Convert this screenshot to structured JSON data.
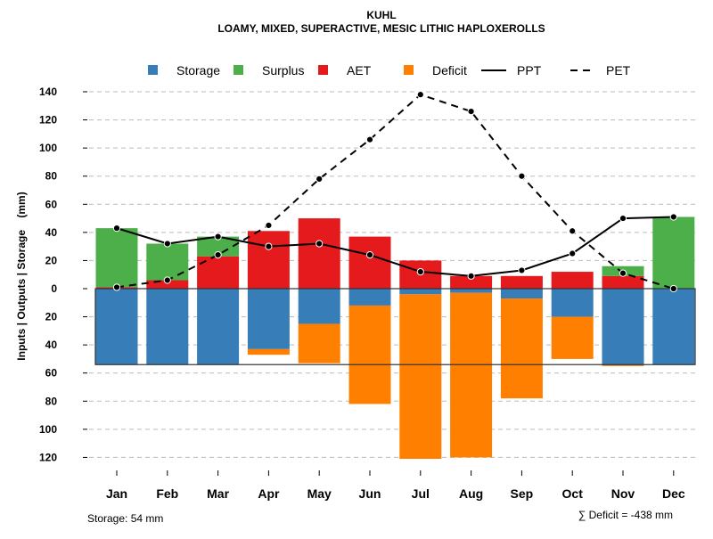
{
  "chart_data": {
    "type": "bar",
    "title": "KUHL",
    "subtitle": "LOAMY, MIXED, SUPERACTIVE, MESIC LITHIC HAPLOXEROLLS",
    "ylabel": "Inputs | Outputs | Storage    (mm)",
    "xlabel": "",
    "ylim": [
      -125,
      140
    ],
    "yticks": [
      140,
      120,
      100,
      80,
      60,
      40,
      20,
      0,
      -20,
      -40,
      -60,
      -80,
      -100,
      -120
    ],
    "ytick_labels": [
      "140",
      "120",
      "100",
      "80",
      "60",
      "40",
      "20",
      "0",
      "20",
      "40",
      "60",
      "80",
      "100",
      "120"
    ],
    "grid": true,
    "legend_placement": "top",
    "categories": [
      "Jan",
      "Feb",
      "Mar",
      "Apr",
      "May",
      "Jun",
      "Jul",
      "Aug",
      "Sep",
      "Oct",
      "Nov",
      "Dec"
    ],
    "series": [
      {
        "name": "Storage",
        "kind": "bar-below",
        "color": "#377EB8",
        "values": [
          54,
          54,
          54,
          43,
          25,
          12,
          4,
          3,
          7,
          20,
          54,
          54
        ]
      },
      {
        "name": "Surplus",
        "kind": "bar-above-stacked",
        "color": "#4DAF4A",
        "values": [
          42,
          26,
          14,
          0,
          0,
          0,
          0,
          0,
          0,
          0,
          7,
          51
        ]
      },
      {
        "name": "AET",
        "kind": "bar-above",
        "color": "#E41A1C",
        "values": [
          1,
          6,
          23,
          41,
          50,
          37,
          20,
          9,
          9,
          12,
          9,
          0
        ]
      },
      {
        "name": "Deficit",
        "kind": "bar-below-stacked",
        "color": "#FF7F00",
        "values": [
          0,
          0,
          0,
          4,
          28,
          70,
          117,
          117,
          71,
          30,
          1,
          0
        ]
      },
      {
        "name": "PPT",
        "kind": "line-solid",
        "color": "#000000",
        "values": [
          43,
          32,
          37,
          30,
          32,
          24,
          12,
          9,
          13,
          25,
          50,
          51
        ]
      },
      {
        "name": "PET",
        "kind": "line-dashed",
        "color": "#000000",
        "values": [
          1,
          6,
          24,
          45,
          78,
          106,
          138,
          126,
          80,
          41,
          11,
          0
        ]
      }
    ],
    "storage_capacity": 54,
    "annotations": {
      "storage": "Storage: 54 mm",
      "deficit": "∑ Deficit = -438 mm"
    }
  }
}
